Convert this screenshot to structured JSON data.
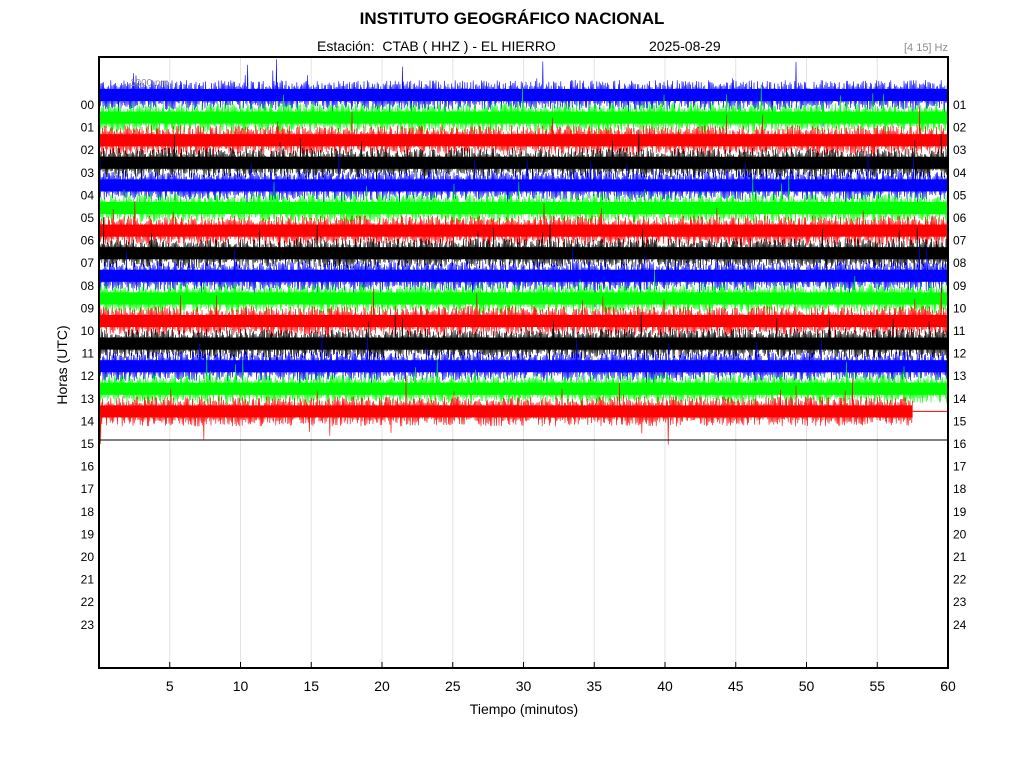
{
  "header": {
    "title": "INSTITUTO GEOGRÁFICO NACIONAL",
    "station": "Estación:  CTAB ( HHZ ) - EL HIERRO",
    "date": "2025-08-29",
    "filter": "[4 15] Hz"
  },
  "scale_label": "1000 nm",
  "chart_data": {
    "type": "line",
    "title": "INSTITUTO GEOGRÁFICO NACIONAL",
    "xlabel": "Tiempo (minutos)",
    "ylabel": "Horas (UTC)",
    "xlim": [
      0,
      60
    ],
    "x_ticks": [
      "5",
      "10",
      "15",
      "20",
      "25",
      "30",
      "35",
      "40",
      "45",
      "50",
      "55",
      "60"
    ],
    "x_tick_values": [
      5,
      10,
      15,
      20,
      25,
      30,
      35,
      40,
      45,
      50,
      55,
      60
    ],
    "y_ticks_left": [
      "00",
      "01",
      "02",
      "03",
      "04",
      "05",
      "06",
      "07",
      "08",
      "09",
      "10",
      "11",
      "12",
      "13",
      "14",
      "15",
      "16",
      "17",
      "18",
      "19",
      "20",
      "21",
      "22",
      "23"
    ],
    "y_ticks_right": [
      "01",
      "02",
      "03",
      "04",
      "05",
      "06",
      "07",
      "08",
      "09",
      "10",
      "11",
      "12",
      "13",
      "14",
      "15",
      "16",
      "17",
      "18",
      "19",
      "20",
      "21",
      "22",
      "23",
      "24"
    ],
    "grid": "vertical",
    "series_color_cycle": [
      "#0000ff",
      "#00ff00",
      "#ff0000",
      "#000000"
    ],
    "traces": [
      {
        "hour": "00",
        "color": "#0000ff",
        "end_minute": 60
      },
      {
        "hour": "01",
        "color": "#00ff00",
        "end_minute": 60
      },
      {
        "hour": "02",
        "color": "#ff0000",
        "end_minute": 60
      },
      {
        "hour": "03",
        "color": "#000000",
        "end_minute": 60
      },
      {
        "hour": "04",
        "color": "#0000ff",
        "end_minute": 60
      },
      {
        "hour": "05",
        "color": "#00ff00",
        "end_minute": 60
      },
      {
        "hour": "06",
        "color": "#ff0000",
        "end_minute": 60
      },
      {
        "hour": "07",
        "color": "#000000",
        "end_minute": 60
      },
      {
        "hour": "08",
        "color": "#0000ff",
        "end_minute": 60
      },
      {
        "hour": "09",
        "color": "#00ff00",
        "end_minute": 60
      },
      {
        "hour": "10",
        "color": "#ff0000",
        "end_minute": 60
      },
      {
        "hour": "11",
        "color": "#000000",
        "end_minute": 60
      },
      {
        "hour": "12",
        "color": "#0000ff",
        "end_minute": 60
      },
      {
        "hour": "13",
        "color": "#00ff00",
        "end_minute": 60
      },
      {
        "hour": "14",
        "color": "#ff0000",
        "end_minute": 57.5
      }
    ],
    "current_time_marker_hour": 15
  }
}
